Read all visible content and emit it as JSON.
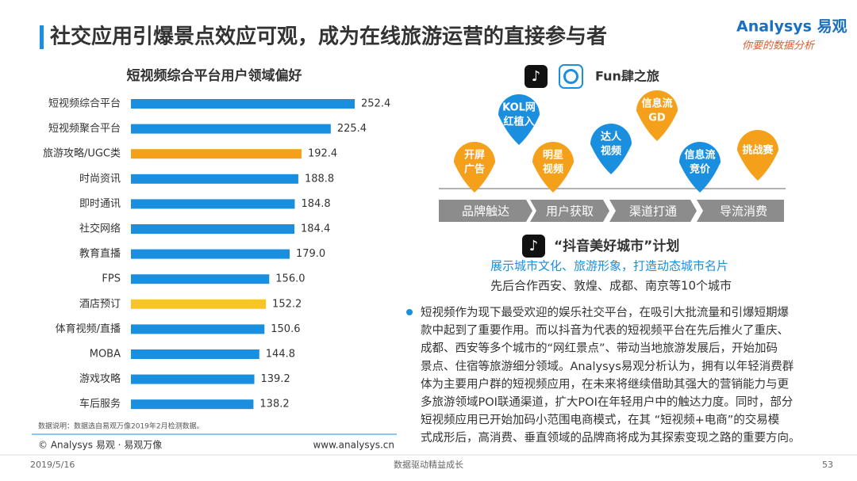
{
  "header": {
    "title": "社交应用引爆景点效应可观，成为在线旅游运营的直接参与者",
    "logo": "Analysys 易观",
    "slogan": "你要的数据分析"
  },
  "chart_data": {
    "type": "bar",
    "orientation": "horizontal",
    "title": "短视频综合平台用户领域偏好",
    "categories": [
      "短视频综合平台",
      "短视频聚合平台",
      "旅游攻略/UGC类",
      "时尚资讯",
      "即时通讯",
      "社交网络",
      "教育直播",
      "FPS",
      "酒店预订",
      "体育视频/直播",
      "MOBA",
      "游戏攻略",
      "车后服务"
    ],
    "values": [
      252.4,
      225.4,
      192.4,
      188.8,
      184.8,
      184.4,
      179.0,
      156.0,
      152.2,
      150.6,
      144.8,
      139.2,
      138.2
    ],
    "value_labels": [
      "252.4",
      "225.4",
      "192.4",
      "188.8",
      "184.8",
      "184.4",
      "179.0",
      "156.0",
      "152.2",
      "150.6",
      "144.8",
      "139.2",
      "138.2"
    ],
    "colors": [
      "#1a8fe0",
      "#1a8fe0",
      "#f5a01a",
      "#1a8fe0",
      "#1a8fe0",
      "#1a8fe0",
      "#1a8fe0",
      "#1a8fe0",
      "#f7c52a",
      "#1a8fe0",
      "#1a8fe0",
      "#1a8fe0",
      "#1a8fe0"
    ],
    "note": "数据说明：数据选自易观万像2019年2月检测数据。"
  },
  "brand": "Fun肆之旅",
  "bubbles": [
    {
      "lines": [
        "开屏",
        "广告"
      ],
      "color": "#f5a01a"
    },
    {
      "lines": [
        "KOL网",
        "红植入"
      ],
      "color": "#1a8fe0"
    },
    {
      "lines": [
        "明星",
        "视频"
      ],
      "color": "#f5a01a"
    },
    {
      "lines": [
        "达人",
        "视频"
      ],
      "color": "#1a8fe0"
    },
    {
      "lines": [
        "信息流",
        "GD"
      ],
      "color": "#f5a01a"
    },
    {
      "lines": [
        "信息流",
        "竞价"
      ],
      "color": "#1a8fe0"
    },
    {
      "lines": [
        "挑战赛"
      ],
      "color": "#f5a01a"
    }
  ],
  "steps": [
    "品牌触达",
    "用户获取",
    "渠道打通",
    "导流消费"
  ],
  "plan": {
    "title": "“抖音美好城市”计划",
    "subtitle": "展示城市文化、旅游形象，打造动态城市名片",
    "detail": "先后合作西安、敦煌、成都、南京等10个城市"
  },
  "paragraph": [
    "短视频作为现下最受欢迎的娱乐社交平台，在吸引大批流量和引爆短期爆",
    "款中起到了重要作用。而以抖音为代表的短视频平台在先后推火了重庆、",
    "成都、西安等多个城市的“网红景点”、带动当地旅游发展后，开始加码",
    "景点、住宿等旅游细分领域。Analysys易观分析认为，拥有以年轻消费群",
    "体为主要用户群的短视频应用，在未来将继续借助其强大的营销能力与更",
    "多旅游领域POI联通渠道，扩大POI在年轻用户中的触达力度。同时，部分",
    "短视频应用已开始加码小范围电商模式，在其 “短视频+电商”的交易模",
    "式成形后，高消费、垂直领域的品牌商将成为其探索变现之路的重要方向。"
  ],
  "footer": {
    "copyright": "© Analysys 易观 · 易观万像",
    "url": "www.analysys.cn",
    "date": "2019/5/16",
    "motto": "数据驱动精益成长",
    "page": "53"
  }
}
